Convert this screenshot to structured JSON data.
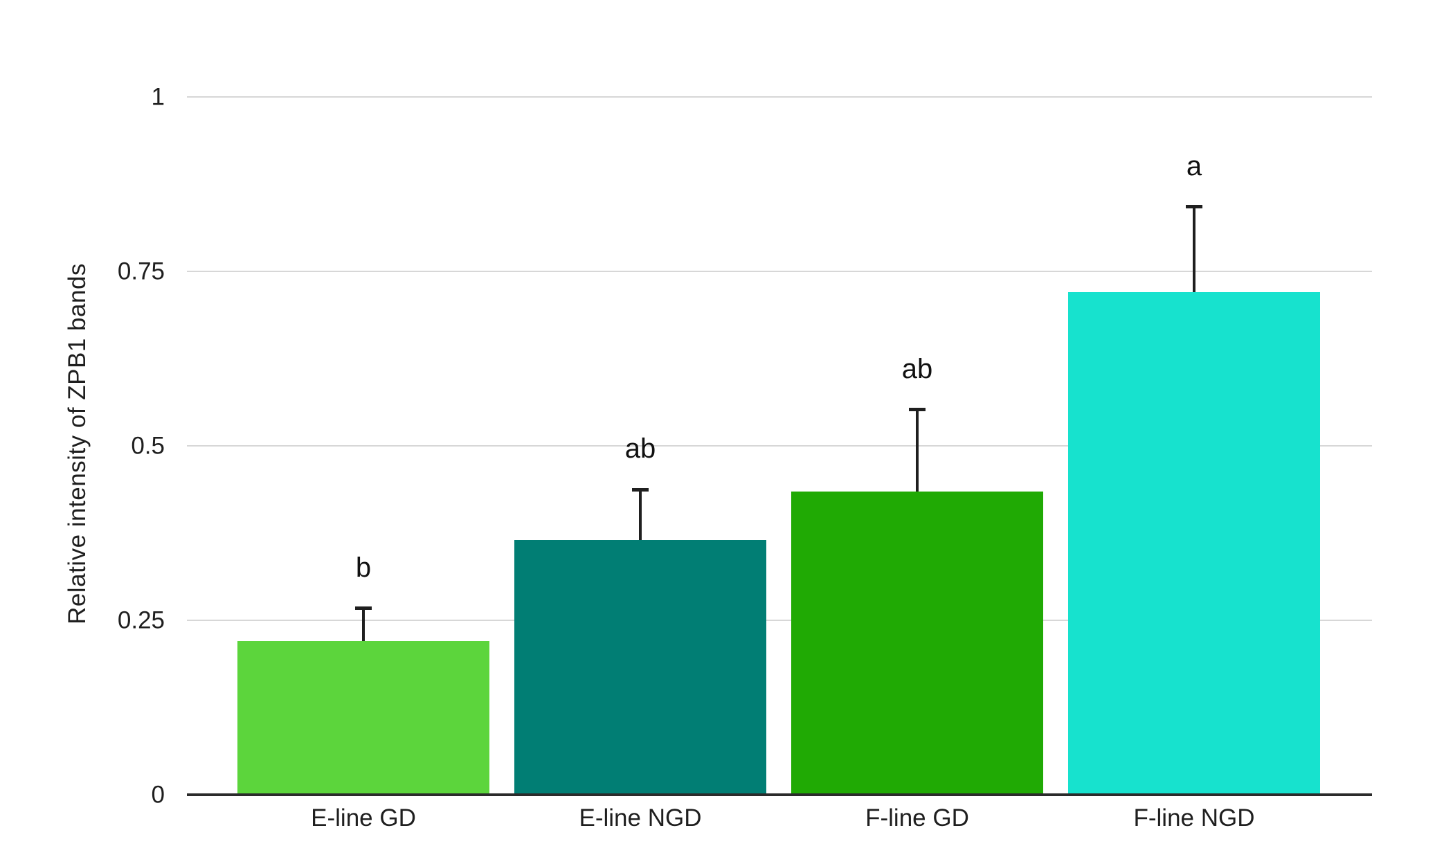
{
  "chart_data": {
    "type": "bar",
    "title": "",
    "xlabel": "",
    "ylabel": "Relative intensity of ZPB1 bands",
    "categories": [
      "E-line GD",
      "E-line NGD",
      "F-line GD",
      "F-line NGD"
    ],
    "values": [
      0.22,
      0.365,
      0.435,
      0.72
    ],
    "error_upper": [
      0.05,
      0.075,
      0.12,
      0.125
    ],
    "significance_letters": [
      "b",
      "ab",
      "ab",
      "a"
    ],
    "bar_colors": [
      "#5CD53C",
      "#017E74",
      "#20AA04",
      "#17E2CE"
    ],
    "ylim": [
      0,
      1
    ],
    "yticks": [
      0,
      0.25,
      0.5,
      0.75,
      1
    ],
    "ytick_labels": [
      "0",
      "0.25",
      "0.5",
      "0.75",
      "1"
    ],
    "grid": true,
    "legend_position": "none",
    "error_bar_color": "#1f1f1f"
  }
}
